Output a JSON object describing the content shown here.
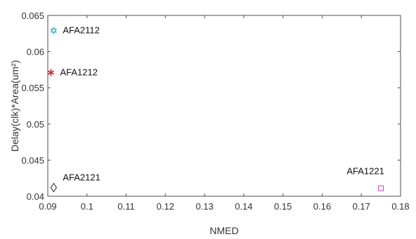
{
  "chart_data": {
    "type": "scatter",
    "xlabel": "NMED",
    "ylabel": "Delay(clk)*Area(um²)",
    "xlim": [
      0.09,
      0.18
    ],
    "ylim": [
      0.04,
      0.065
    ],
    "x_ticks": [
      "0.09",
      "0.1",
      "0.11",
      "0.12",
      "0.13",
      "0.14",
      "0.15",
      "0.16",
      "0.17",
      "0.18"
    ],
    "y_ticks": [
      "0.04",
      "0.045",
      "0.05",
      "0.055",
      "0.06",
      "0.065"
    ],
    "grid": false,
    "points": [
      {
        "label": "AFA2112",
        "x": 0.0915,
        "y": 0.0629,
        "marker": "hexagram",
        "color": "#2fb8c8"
      },
      {
        "label": "AFA1212",
        "x": 0.0908,
        "y": 0.0571,
        "marker": "asterisk",
        "color": "#d42020"
      },
      {
        "label": "AFA2121",
        "x": 0.0915,
        "y": 0.0412,
        "marker": "diamond",
        "color": "#222222"
      },
      {
        "label": "AFA1221",
        "x": 0.175,
        "y": 0.0411,
        "marker": "square",
        "color": "#c040c0"
      }
    ]
  }
}
